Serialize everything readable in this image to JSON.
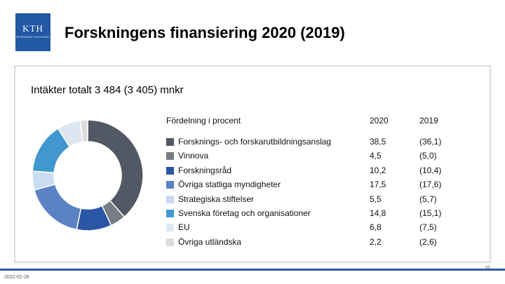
{
  "header": {
    "title": "Forskningens finansiering 2020 (2019)",
    "logo_text": "KTH",
    "logo_subtext": "VETENSKAP OCH KONST"
  },
  "subtitle": "Intäkter totalt 3 484 (3 405) mnkr",
  "footer": {
    "date": "2022-01-26",
    "page": "69"
  },
  "colors": {
    "logo_bg": "#2258a5",
    "footer_line": "#2c5fa8"
  },
  "chart_data": {
    "type": "pie",
    "subtype": "donut",
    "title": "Fördelning i procent",
    "columns": [
      "2020",
      "2019"
    ],
    "categories": [
      "Forsknings- och forskarutbildningsanslag",
      "Vinnova",
      "Forskningsråd",
      "Övriga statliga myndigheter",
      "Strategiska stiftelser",
      "Svenska företag och organisationer",
      "EU",
      "Övriga utländska"
    ],
    "values_2020": [
      38.5,
      4.5,
      10.2,
      17.5,
      5.5,
      14.8,
      6.8,
      2.2
    ],
    "values_2020_text": [
      "38,5",
      "4,5",
      "10,2",
      "17,5",
      "5,5",
      "14,8",
      "6,8",
      "2,2"
    ],
    "values_2019_text": [
      "(36,1)",
      "(5,0)",
      "(10,4)",
      "(17,6)",
      "(5,7)",
      "(15,1)",
      "(7,5)",
      "(2,6)"
    ],
    "colors": [
      "#525864",
      "#767b84",
      "#2a56a6",
      "#5a82c4",
      "#c9dcf1",
      "#4197cf",
      "#dde7f2",
      "#dcdcdc"
    ],
    "legend_placement": "right"
  }
}
